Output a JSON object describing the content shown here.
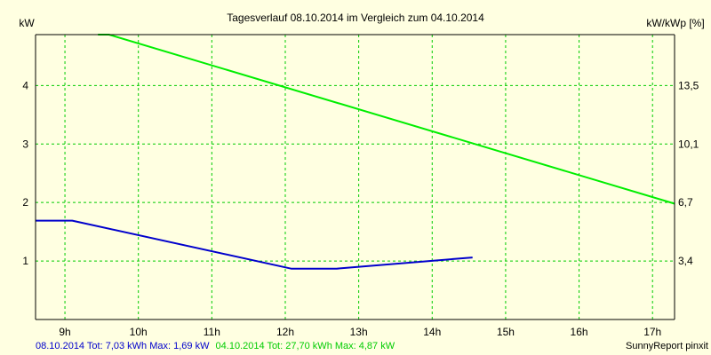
{
  "chart_data": {
    "type": "line",
    "title": "Tagesverlauf 08.10.2014 im Vergleich zum 04.10.2014",
    "y_left_label": "kW",
    "y_right_label": "kW/kWp [%]",
    "x_tick_labels": [
      "9h",
      "10h",
      "11h",
      "12h",
      "13h",
      "14h",
      "15h",
      "16h",
      "17h"
    ],
    "x_ticks": [
      9,
      10,
      11,
      12,
      13,
      14,
      15,
      16,
      17
    ],
    "xlim": [
      8.6,
      17.3
    ],
    "ylim": [
      0,
      4.87
    ],
    "y_left_ticks": [
      1,
      2,
      3,
      4
    ],
    "y_right_tick_labels": [
      {
        "label": "3,4",
        "kw": 1
      },
      {
        "label": "6,7",
        "kw": 2
      },
      {
        "label": "10,1",
        "kw": 3
      },
      {
        "label": "13,5",
        "kw": 4
      }
    ],
    "grid": true,
    "series": [
      {
        "color": "#00ee00",
        "x": [
          9.45,
          9.6,
          17.3
        ],
        "y": [
          4.87,
          4.87,
          1.98
        ]
      },
      {
        "color": "#0000cc",
        "x": [
          8.6,
          9.1,
          12.08,
          12.7,
          14.55
        ],
        "y": [
          1.69,
          1.69,
          0.87,
          0.87,
          1.06
        ]
      }
    ]
  },
  "footer": {
    "series1_text": "08.10.2014 Tot: 7,03 kWh Max: 1,69 kW",
    "series1_color": "#0000cc",
    "series2_text": "04.10.2014 Tot: 27,70 kWh Max: 4,87 kW",
    "series2_color": "#00cc00",
    "credit": "SunnyReport pinxit"
  }
}
